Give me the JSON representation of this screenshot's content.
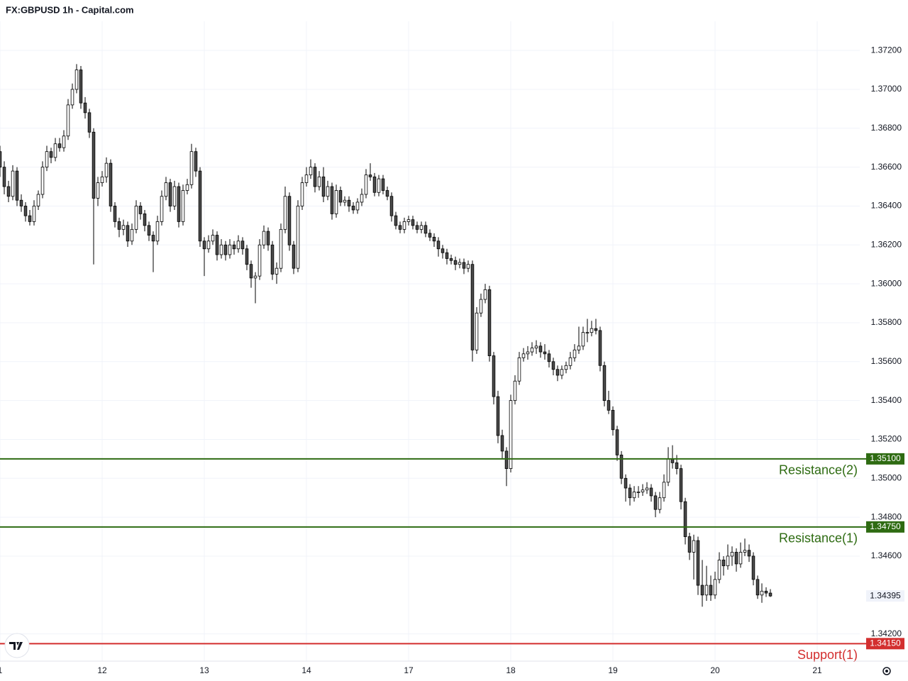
{
  "chart_data": {
    "type": "candlestick",
    "title": "FX:GBPUSD 1h - Capital.com",
    "up_color": "#ffffff",
    "down_color": "#4a4a4a",
    "wick_color": "#000000",
    "grid": true,
    "xlim": [
      0,
      202
    ],
    "ylim": [
      1.3406,
      1.3735
    ],
    "xticks": [
      {
        "value": 0,
        "label": "1"
      },
      {
        "value": 24,
        "label": "12"
      },
      {
        "value": 48,
        "label": "13"
      },
      {
        "value": 72,
        "label": "14"
      },
      {
        "value": 96,
        "label": "17"
      },
      {
        "value": 120,
        "label": "18"
      },
      {
        "value": 144,
        "label": "19"
      },
      {
        "value": 168,
        "label": "20"
      },
      {
        "value": 192,
        "label": "21"
      }
    ],
    "yticks": [
      {
        "value": 1.372,
        "label": "1.37200"
      },
      {
        "value": 1.37,
        "label": "1.37000"
      },
      {
        "value": 1.368,
        "label": "1.36800"
      },
      {
        "value": 1.366,
        "label": "1.36600"
      },
      {
        "value": 1.364,
        "label": "1.36400"
      },
      {
        "value": 1.362,
        "label": "1.36200"
      },
      {
        "value": 1.36,
        "label": "1.36000"
      },
      {
        "value": 1.358,
        "label": "1.35800"
      },
      {
        "value": 1.356,
        "label": "1.35600"
      },
      {
        "value": 1.354,
        "label": "1.35400"
      },
      {
        "value": 1.352,
        "label": "1.35200"
      },
      {
        "value": 1.35,
        "label": "1.35000"
      },
      {
        "value": 1.348,
        "label": "1.34800"
      },
      {
        "value": 1.346,
        "label": "1.34600"
      },
      {
        "value": 1.342,
        "label": "1.34200"
      }
    ],
    "levels": [
      {
        "name": "Resistance(2)",
        "value": 1.351,
        "label": "1.35100",
        "color": "#2e6b12"
      },
      {
        "name": "Resistance(1)",
        "value": 1.3475,
        "label": "1.34750",
        "color": "#2e6b12"
      },
      {
        "name": "Support(1)",
        "value": 1.3415,
        "label": "1.34150",
        "color": "#d32f2f"
      }
    ],
    "last_price": {
      "value": 1.34395,
      "label": "1.34395"
    },
    "ohlc": [
      [
        1.3668,
        1.3671,
        1.3655,
        1.366
      ],
      [
        1.366,
        1.3663,
        1.3646,
        1.365
      ],
      [
        1.365,
        1.3653,
        1.3642,
        1.3645
      ],
      [
        1.3645,
        1.3661,
        1.3643,
        1.3658
      ],
      [
        1.3658,
        1.366,
        1.364,
        1.3643
      ],
      [
        1.3643,
        1.3646,
        1.3637,
        1.364
      ],
      [
        1.364,
        1.3642,
        1.3632,
        1.3635
      ],
      [
        1.3635,
        1.3638,
        1.363,
        1.3632
      ],
      [
        1.3632,
        1.3643,
        1.363,
        1.364
      ],
      [
        1.364,
        1.3648,
        1.3638,
        1.3646
      ],
      [
        1.3646,
        1.3663,
        1.3644,
        1.366
      ],
      [
        1.366,
        1.3671,
        1.3658,
        1.3668
      ],
      [
        1.3668,
        1.367,
        1.3662,
        1.3665
      ],
      [
        1.3665,
        1.3675,
        1.3663,
        1.3672
      ],
      [
        1.3672,
        1.3675,
        1.3668,
        1.367
      ],
      [
        1.367,
        1.3679,
        1.3668,
        1.3676
      ],
      [
        1.3676,
        1.3695,
        1.3674,
        1.3692
      ],
      [
        1.3692,
        1.3703,
        1.369,
        1.37
      ],
      [
        1.37,
        1.3713,
        1.3698,
        1.371
      ],
      [
        1.371,
        1.3712,
        1.369,
        1.3693
      ],
      [
        1.3693,
        1.3696,
        1.3685,
        1.3688
      ],
      [
        1.3688,
        1.369,
        1.3675,
        1.3678
      ],
      [
        1.3678,
        1.368,
        1.361,
        1.3644
      ],
      [
        1.3644,
        1.3655,
        1.364,
        1.3652
      ],
      [
        1.3652,
        1.3658,
        1.365,
        1.3655
      ],
      [
        1.3655,
        1.3665,
        1.3652,
        1.3662
      ],
      [
        1.3662,
        1.3664,
        1.3637,
        1.364
      ],
      [
        1.364,
        1.3642,
        1.3629,
        1.3632
      ],
      [
        1.3632,
        1.3634,
        1.3624,
        1.3628
      ],
      [
        1.3628,
        1.3633,
        1.3625,
        1.363
      ],
      [
        1.363,
        1.3632,
        1.3619,
        1.3622
      ],
      [
        1.3622,
        1.3631,
        1.362,
        1.3628
      ],
      [
        1.3628,
        1.3643,
        1.3626,
        1.364
      ],
      [
        1.364,
        1.3642,
        1.3633,
        1.3636
      ],
      [
        1.3636,
        1.3638,
        1.3627,
        1.363
      ],
      [
        1.363,
        1.3632,
        1.3622,
        1.3625
      ],
      [
        1.3625,
        1.3627,
        1.3606,
        1.3622
      ],
      [
        1.3622,
        1.3635,
        1.362,
        1.3632
      ],
      [
        1.3632,
        1.3648,
        1.363,
        1.3645
      ],
      [
        1.3645,
        1.3655,
        1.3643,
        1.3652
      ],
      [
        1.3652,
        1.3654,
        1.3637,
        1.364
      ],
      [
        1.364,
        1.3653,
        1.3638,
        1.365
      ],
      [
        1.365,
        1.3652,
        1.3629,
        1.3632
      ],
      [
        1.3632,
        1.3651,
        1.363,
        1.3648
      ],
      [
        1.3648,
        1.3654,
        1.3646,
        1.3651
      ],
      [
        1.3651,
        1.3672,
        1.3649,
        1.3668
      ],
      [
        1.3668,
        1.367,
        1.3655,
        1.3658
      ],
      [
        1.3658,
        1.366,
        1.3619,
        1.3622
      ],
      [
        1.3622,
        1.3624,
        1.3604,
        1.3618
      ],
      [
        1.3618,
        1.3625,
        1.3616,
        1.3622
      ],
      [
        1.3622,
        1.3628,
        1.362,
        1.3625
      ],
      [
        1.3625,
        1.3627,
        1.3612,
        1.3615
      ],
      [
        1.3615,
        1.3623,
        1.3613,
        1.362
      ],
      [
        1.362,
        1.3622,
        1.3612,
        1.3615
      ],
      [
        1.3615,
        1.3623,
        1.3613,
        1.362
      ],
      [
        1.362,
        1.3622,
        1.3615,
        1.3618
      ],
      [
        1.3618,
        1.3625,
        1.3616,
        1.3622
      ],
      [
        1.3622,
        1.3624,
        1.3615,
        1.3618
      ],
      [
        1.3618,
        1.362,
        1.3607,
        1.361
      ],
      [
        1.361,
        1.3612,
        1.3598,
        1.3603
      ],
      [
        1.3603,
        1.3606,
        1.359,
        1.3604
      ],
      [
        1.3604,
        1.3623,
        1.3602,
        1.362
      ],
      [
        1.362,
        1.363,
        1.3618,
        1.3627
      ],
      [
        1.3627,
        1.3629,
        1.3617,
        1.362
      ],
      [
        1.362,
        1.3622,
        1.3602,
        1.3605
      ],
      [
        1.3605,
        1.3611,
        1.36,
        1.3608
      ],
      [
        1.3608,
        1.3631,
        1.3606,
        1.3628
      ],
      [
        1.3628,
        1.365,
        1.3626,
        1.3645
      ],
      [
        1.3645,
        1.3647,
        1.3617,
        1.362
      ],
      [
        1.362,
        1.3622,
        1.3605,
        1.3608
      ],
      [
        1.3608,
        1.3643,
        1.3606,
        1.364
      ],
      [
        1.364,
        1.3655,
        1.3638,
        1.3652
      ],
      [
        1.3652,
        1.366,
        1.365,
        1.3656
      ],
      [
        1.3656,
        1.3664,
        1.3654,
        1.366
      ],
      [
        1.366,
        1.3662,
        1.3647,
        1.365
      ],
      [
        1.365,
        1.3658,
        1.3648,
        1.3655
      ],
      [
        1.3655,
        1.366,
        1.3642,
        1.3645
      ],
      [
        1.3645,
        1.3653,
        1.3643,
        1.365
      ],
      [
        1.365,
        1.3652,
        1.3633,
        1.3636
      ],
      [
        1.3636,
        1.3651,
        1.3634,
        1.3648
      ],
      [
        1.3648,
        1.365,
        1.364,
        1.3642
      ],
      [
        1.3642,
        1.3645,
        1.364,
        1.3643
      ],
      [
        1.3643,
        1.3645,
        1.3637,
        1.364
      ],
      [
        1.364,
        1.3642,
        1.3636,
        1.3638
      ],
      [
        1.3638,
        1.3644,
        1.3636,
        1.3642
      ],
      [
        1.3642,
        1.3649,
        1.364,
        1.3646
      ],
      [
        1.3646,
        1.3659,
        1.3644,
        1.3656
      ],
      [
        1.3656,
        1.3662,
        1.3653,
        1.3655
      ],
      [
        1.3655,
        1.3657,
        1.3645,
        1.3647
      ],
      [
        1.3647,
        1.3656,
        1.3645,
        1.3654
      ],
      [
        1.3654,
        1.3656,
        1.3646,
        1.3648
      ],
      [
        1.3648,
        1.365,
        1.3643,
        1.3645
      ],
      [
        1.3645,
        1.3647,
        1.3632,
        1.3635
      ],
      [
        1.3635,
        1.3637,
        1.3628,
        1.363
      ],
      [
        1.363,
        1.3632,
        1.3626,
        1.3628
      ],
      [
        1.3628,
        1.3634,
        1.3626,
        1.3632
      ],
      [
        1.3632,
        1.3635,
        1.363,
        1.3633
      ],
      [
        1.3633,
        1.3635,
        1.3628,
        1.363
      ],
      [
        1.363,
        1.3632,
        1.3626,
        1.3628
      ],
      [
        1.3628,
        1.3632,
        1.3626,
        1.363
      ],
      [
        1.363,
        1.3632,
        1.3624,
        1.3626
      ],
      [
        1.3626,
        1.3628,
        1.3622,
        1.3624
      ],
      [
        1.3624,
        1.3626,
        1.3619,
        1.3622
      ],
      [
        1.3622,
        1.3624,
        1.3614,
        1.3618
      ],
      [
        1.3618,
        1.362,
        1.3613,
        1.3616
      ],
      [
        1.3616,
        1.3618,
        1.361,
        1.3613
      ],
      [
        1.3613,
        1.3615,
        1.361,
        1.3612
      ],
      [
        1.3612,
        1.3614,
        1.3607,
        1.361
      ],
      [
        1.361,
        1.3613,
        1.3608,
        1.3611
      ],
      [
        1.3611,
        1.3613,
        1.3605,
        1.3608
      ],
      [
        1.3608,
        1.3612,
        1.3606,
        1.361
      ],
      [
        1.361,
        1.3612,
        1.356,
        1.3566
      ],
      [
        1.3566,
        1.3588,
        1.3564,
        1.3585
      ],
      [
        1.3585,
        1.3595,
        1.3583,
        1.3592
      ],
      [
        1.3592,
        1.36,
        1.359,
        1.3597
      ],
      [
        1.3597,
        1.3599,
        1.356,
        1.3563
      ],
      [
        1.3563,
        1.3565,
        1.3538,
        1.3542
      ],
      [
        1.3542,
        1.3545,
        1.3518,
        1.3522
      ],
      [
        1.3522,
        1.3525,
        1.351,
        1.3514
      ],
      [
        1.3514,
        1.3516,
        1.3496,
        1.3505
      ],
      [
        1.3505,
        1.3543,
        1.3503,
        1.354
      ],
      [
        1.354,
        1.3553,
        1.3538,
        1.355
      ],
      [
        1.355,
        1.3565,
        1.3548,
        1.3562
      ],
      [
        1.3562,
        1.3567,
        1.356,
        1.3564
      ],
      [
        1.3564,
        1.3568,
        1.3561,
        1.3565
      ],
      [
        1.3565,
        1.357,
        1.3563,
        1.3567
      ],
      [
        1.3567,
        1.3571,
        1.3564,
        1.3568
      ],
      [
        1.3568,
        1.357,
        1.3562,
        1.3565
      ],
      [
        1.3565,
        1.3569,
        1.3561,
        1.3564
      ],
      [
        1.3564,
        1.3566,
        1.3557,
        1.356
      ],
      [
        1.356,
        1.3562,
        1.3553,
        1.3556
      ],
      [
        1.3556,
        1.3558,
        1.355,
        1.3553
      ],
      [
        1.3553,
        1.3558,
        1.3551,
        1.3556
      ],
      [
        1.3556,
        1.356,
        1.3554,
        1.3558
      ],
      [
        1.3558,
        1.3565,
        1.3556,
        1.3562
      ],
      [
        1.3562,
        1.3569,
        1.356,
        1.3566
      ],
      [
        1.3566,
        1.3578,
        1.3564,
        1.3568
      ],
      [
        1.3568,
        1.3578,
        1.3566,
        1.3575
      ],
      [
        1.3575,
        1.3582,
        1.357,
        1.3575
      ],
      [
        1.3575,
        1.3581,
        1.3573,
        1.3577
      ],
      [
        1.3577,
        1.3582,
        1.3574,
        1.3576
      ],
      [
        1.3576,
        1.3578,
        1.3555,
        1.3558
      ],
      [
        1.3558,
        1.356,
        1.3537,
        1.354
      ],
      [
        1.354,
        1.3545,
        1.3533,
        1.3535
      ],
      [
        1.3535,
        1.3537,
        1.3522,
        1.3525
      ],
      [
        1.3525,
        1.3527,
        1.3509,
        1.3512
      ],
      [
        1.3512,
        1.3514,
        1.3497,
        1.35
      ],
      [
        1.35,
        1.3502,
        1.3488,
        1.3495
      ],
      [
        1.3495,
        1.3497,
        1.3486,
        1.349
      ],
      [
        1.349,
        1.3496,
        1.3488,
        1.3493
      ],
      [
        1.3493,
        1.3496,
        1.349,
        1.3493
      ],
      [
        1.3493,
        1.3497,
        1.3491,
        1.3494
      ],
      [
        1.3494,
        1.3498,
        1.3492,
        1.3495
      ],
      [
        1.3495,
        1.3497,
        1.3488,
        1.3491
      ],
      [
        1.3491,
        1.3493,
        1.348,
        1.3484
      ],
      [
        1.3484,
        1.3493,
        1.3482,
        1.349
      ],
      [
        1.349,
        1.3502,
        1.3488,
        1.3498
      ],
      [
        1.3498,
        1.3516,
        1.3496,
        1.351
      ],
      [
        1.351,
        1.3517,
        1.3505,
        1.3508
      ],
      [
        1.3508,
        1.3512,
        1.3502,
        1.3505
      ],
      [
        1.3505,
        1.3507,
        1.3484,
        1.3488
      ],
      [
        1.3488,
        1.349,
        1.3466,
        1.347
      ],
      [
        1.347,
        1.3472,
        1.3458,
        1.3462
      ],
      [
        1.3462,
        1.3471,
        1.3448,
        1.3468
      ],
      [
        1.3468,
        1.347,
        1.344,
        1.3445
      ],
      [
        1.3445,
        1.3458,
        1.3434,
        1.344
      ],
      [
        1.344,
        1.3455,
        1.3437,
        1.3445
      ],
      [
        1.3445,
        1.345,
        1.3437,
        1.344
      ],
      [
        1.344,
        1.3452,
        1.3438,
        1.3448
      ],
      [
        1.3448,
        1.3462,
        1.3446,
        1.3458
      ],
      [
        1.3458,
        1.346,
        1.345,
        1.3455
      ],
      [
        1.3455,
        1.3466,
        1.3453,
        1.346
      ],
      [
        1.346,
        1.3465,
        1.3455,
        1.3462
      ],
      [
        1.3462,
        1.3464,
        1.3452,
        1.3456
      ],
      [
        1.3456,
        1.3467,
        1.3454,
        1.3462
      ],
      [
        1.3462,
        1.3469,
        1.346,
        1.3463
      ],
      [
        1.3463,
        1.3466,
        1.3457,
        1.346
      ],
      [
        1.346,
        1.3462,
        1.3445,
        1.3448
      ],
      [
        1.3448,
        1.345,
        1.3438,
        1.344
      ],
      [
        1.344,
        1.3446,
        1.3436,
        1.3442
      ],
      [
        1.3442,
        1.3444,
        1.3439,
        1.3441
      ],
      [
        1.3441,
        1.3443,
        1.3439,
        1.34395
      ]
    ]
  }
}
